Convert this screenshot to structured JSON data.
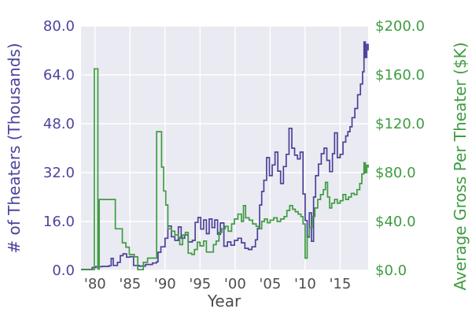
{
  "chart_data": {
    "type": "line",
    "title": "",
    "xlabel": "Year",
    "plot_bg": "#eaeaf2",
    "grid_color": "#ffffff",
    "x_range": [
      1978,
      2019
    ],
    "x_axis": {
      "color": "#4d4d4d",
      "tick_values": [
        1980,
        1985,
        1990,
        1995,
        2000,
        2005,
        2010,
        2015
      ],
      "tick_labels": [
        "'80",
        "'85",
        "'90",
        "'95",
        "'00",
        "'05",
        "'10",
        "'15"
      ]
    },
    "left_axis": {
      "label": "# of Theaters (Thousands)",
      "color": "#4b459c",
      "ylim": [
        0,
        80
      ],
      "tick_values": [
        0,
        16,
        32,
        48,
        64,
        80
      ],
      "tick_labels": [
        "0.0",
        "16.0",
        "32.0",
        "48.0",
        "64.0",
        "80.0"
      ]
    },
    "right_axis": {
      "label": "Average Gross Per Theater ($K)",
      "color": "#3f9c41",
      "ylim": [
        0,
        200
      ],
      "tick_values": [
        0,
        40,
        80,
        120,
        160,
        200
      ],
      "tick_labels": [
        "$0.0",
        "$40.0",
        "$80.0",
        "$120.0",
        "$160.0",
        "$200.0"
      ]
    },
    "legend": "none",
    "grid": true,
    "series": [
      {
        "id": "theaters",
        "name": "# of Theaters (Thousands)",
        "axis": "left",
        "color": "#4a4298",
        "step": true,
        "points": [
          [
            1978.0,
            0.3
          ],
          [
            1979.6,
            0.9
          ],
          [
            1980.1,
            1.2
          ],
          [
            1981.0,
            1.3
          ],
          [
            1982.0,
            1.5
          ],
          [
            1982.3,
            3.9
          ],
          [
            1982.6,
            1.6
          ],
          [
            1983.2,
            2.6
          ],
          [
            1983.6,
            4.8
          ],
          [
            1984.0,
            5.4
          ],
          [
            1984.5,
            4.3
          ],
          [
            1985.0,
            4.5
          ],
          [
            1985.5,
            1.6
          ],
          [
            1986.3,
            1.4
          ],
          [
            1987.2,
            1.9
          ],
          [
            1988.2,
            2.4
          ],
          [
            1988.8,
            2.8
          ],
          [
            1989.0,
            5.9
          ],
          [
            1989.4,
            7.7
          ],
          [
            1990.0,
            10.5
          ],
          [
            1990.4,
            14.5
          ],
          [
            1990.9,
            11.0
          ],
          [
            1991.4,
            9.8
          ],
          [
            1991.9,
            14.2
          ],
          [
            1992.3,
            10.5
          ],
          [
            1992.8,
            11.6
          ],
          [
            1993.3,
            9.3
          ],
          [
            1993.9,
            9.8
          ],
          [
            1994.3,
            15.7
          ],
          [
            1994.7,
            17.3
          ],
          [
            1995.1,
            13.5
          ],
          [
            1995.5,
            16.5
          ],
          [
            1995.9,
            12.0
          ],
          [
            1996.3,
            16.8
          ],
          [
            1996.7,
            14.0
          ],
          [
            1997.1,
            16.5
          ],
          [
            1997.5,
            11.8
          ],
          [
            1997.9,
            15.5
          ],
          [
            1998.4,
            7.9
          ],
          [
            1998.9,
            9.3
          ],
          [
            1999.4,
            8.2
          ],
          [
            1999.9,
            9.8
          ],
          [
            2000.4,
            10.5
          ],
          [
            2000.9,
            9.0
          ],
          [
            2001.4,
            7.2
          ],
          [
            2001.9,
            6.8
          ],
          [
            2002.4,
            7.7
          ],
          [
            2002.9,
            10.0
          ],
          [
            2003.2,
            13.7
          ],
          [
            2003.5,
            21.4
          ],
          [
            2003.8,
            25.8
          ],
          [
            2004.1,
            29.5
          ],
          [
            2004.5,
            36.9
          ],
          [
            2004.9,
            31.0
          ],
          [
            2005.3,
            34.5
          ],
          [
            2005.7,
            38.7
          ],
          [
            2006.1,
            32.5
          ],
          [
            2006.5,
            28.4
          ],
          [
            2006.9,
            34.0
          ],
          [
            2007.3,
            38.0
          ],
          [
            2007.7,
            46.5
          ],
          [
            2008.1,
            40.0
          ],
          [
            2008.5,
            37.7
          ],
          [
            2008.9,
            36.5
          ],
          [
            2009.3,
            38.7
          ],
          [
            2009.7,
            25.0
          ],
          [
            2010.0,
            16.3
          ],
          [
            2010.3,
            11.0
          ],
          [
            2010.6,
            18.8
          ],
          [
            2010.9,
            9.5
          ],
          [
            2011.2,
            24.0
          ],
          [
            2011.5,
            31.0
          ],
          [
            2011.9,
            34.8
          ],
          [
            2012.3,
            38.2
          ],
          [
            2012.7,
            40.0
          ],
          [
            2013.1,
            36.0
          ],
          [
            2013.5,
            32.3
          ],
          [
            2013.9,
            38.2
          ],
          [
            2014.2,
            45.0
          ],
          [
            2014.6,
            36.9
          ],
          [
            2015.0,
            38.0
          ],
          [
            2015.4,
            42.0
          ],
          [
            2015.8,
            44.0
          ],
          [
            2016.1,
            45.4
          ],
          [
            2016.4,
            47.0
          ],
          [
            2016.7,
            50.0
          ],
          [
            2017.1,
            53.0
          ],
          [
            2017.5,
            57.5
          ],
          [
            2017.9,
            61.0
          ],
          [
            2018.2,
            65.0
          ],
          [
            2018.4,
            74.8
          ],
          [
            2018.6,
            69.7
          ],
          [
            2018.8,
            74.0
          ],
          [
            2019.0,
            72.0
          ]
        ]
      },
      {
        "id": "avg-gross",
        "name": "Average Gross Per Theater ($K)",
        "axis": "right",
        "color": "#3f9c41",
        "step": true,
        "points": [
          [
            1978.0,
            0.5
          ],
          [
            1979.85,
            0.5
          ],
          [
            1979.9,
            165
          ],
          [
            1980.35,
            165
          ],
          [
            1980.4,
            1
          ],
          [
            1980.6,
            58
          ],
          [
            1982.5,
            58
          ],
          [
            1982.9,
            34
          ],
          [
            1983.6,
            34
          ],
          [
            1983.9,
            22.5
          ],
          [
            1984.4,
            19
          ],
          [
            1984.9,
            13
          ],
          [
            1985.6,
            11
          ],
          [
            1986.1,
            0.5
          ],
          [
            1986.6,
            0.5
          ],
          [
            1986.9,
            6.5
          ],
          [
            1987.5,
            10
          ],
          [
            1988.7,
            10
          ],
          [
            1988.8,
            113.5
          ],
          [
            1989.4,
            113.5
          ],
          [
            1989.5,
            84.5
          ],
          [
            1989.8,
            65
          ],
          [
            1990.1,
            53.5
          ],
          [
            1990.4,
            34
          ],
          [
            1990.9,
            32
          ],
          [
            1991.4,
            29
          ],
          [
            1991.9,
            27
          ],
          [
            1992.1,
            21
          ],
          [
            1992.5,
            29
          ],
          [
            1992.9,
            31
          ],
          [
            1993.3,
            14
          ],
          [
            1993.8,
            13
          ],
          [
            1994.2,
            17
          ],
          [
            1994.6,
            23
          ],
          [
            1995.0,
            20
          ],
          [
            1995.5,
            24
          ],
          [
            1995.9,
            15
          ],
          [
            1996.5,
            15
          ],
          [
            1996.9,
            21
          ],
          [
            1997.3,
            24
          ],
          [
            1997.7,
            31
          ],
          [
            1998.1,
            34
          ],
          [
            1998.6,
            36
          ],
          [
            1999.0,
            32
          ],
          [
            1999.5,
            38
          ],
          [
            1999.9,
            42
          ],
          [
            2000.4,
            46
          ],
          [
            2000.9,
            40
          ],
          [
            2001.2,
            53
          ],
          [
            2001.5,
            43
          ],
          [
            2002.0,
            41
          ],
          [
            2002.5,
            38
          ],
          [
            2003.0,
            36
          ],
          [
            2003.4,
            34
          ],
          [
            2003.8,
            40
          ],
          [
            2004.2,
            42
          ],
          [
            2004.6,
            39
          ],
          [
            2005.0,
            41
          ],
          [
            2005.5,
            43
          ],
          [
            2006.0,
            40
          ],
          [
            2006.5,
            42
          ],
          [
            2007.0,
            44
          ],
          [
            2007.4,
            49
          ],
          [
            2007.8,
            53
          ],
          [
            2008.2,
            50
          ],
          [
            2008.6,
            48
          ],
          [
            2009.0,
            46
          ],
          [
            2009.4,
            44
          ],
          [
            2009.7,
            38
          ],
          [
            2010.0,
            10
          ],
          [
            2010.3,
            27
          ],
          [
            2010.6,
            35
          ],
          [
            2011.0,
            44
          ],
          [
            2011.4,
            51
          ],
          [
            2011.8,
            58
          ],
          [
            2012.2,
            62
          ],
          [
            2012.6,
            66
          ],
          [
            2012.9,
            72
          ],
          [
            2013.2,
            60
          ],
          [
            2013.5,
            51
          ],
          [
            2013.8,
            55
          ],
          [
            2014.2,
            58
          ],
          [
            2014.6,
            55
          ],
          [
            2015.0,
            57
          ],
          [
            2015.4,
            62
          ],
          [
            2015.8,
            58
          ],
          [
            2016.2,
            60
          ],
          [
            2016.6,
            63
          ],
          [
            2017.0,
            62
          ],
          [
            2017.4,
            66
          ],
          [
            2017.8,
            71
          ],
          [
            2018.1,
            79
          ],
          [
            2018.4,
            88
          ],
          [
            2018.6,
            80
          ],
          [
            2018.8,
            86
          ],
          [
            2019.0,
            84
          ]
        ]
      }
    ]
  }
}
